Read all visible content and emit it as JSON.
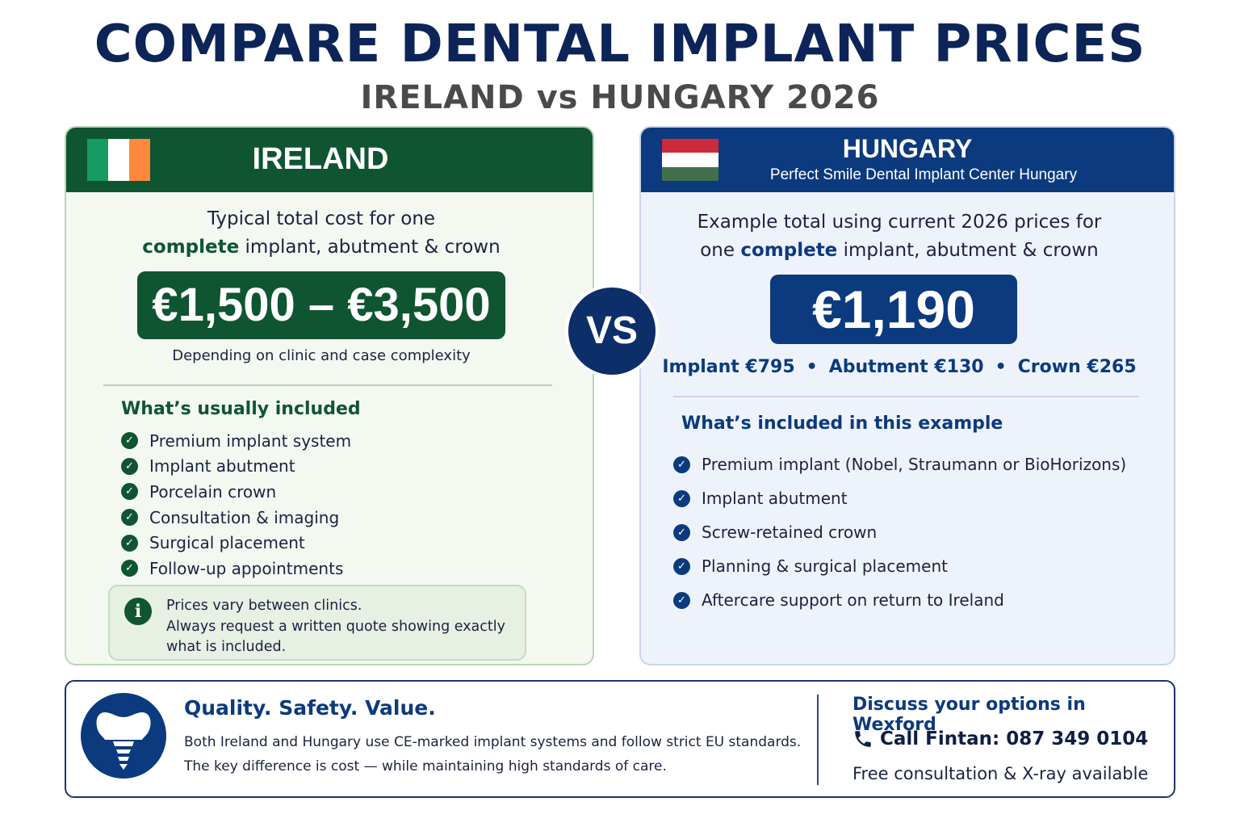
{
  "title": "COMPARE DENTAL IMPLANT PRICES",
  "subtitle": "IRELAND vs HUNGARY 2026",
  "colors": {
    "ireland_green": "#0f5532",
    "hungary_blue": "#0c3a7e",
    "ie_flag": [
      "#169b62",
      "#ffffff",
      "#ff883e"
    ],
    "hu_flag": [
      "#cd2a3e",
      "#ffffff",
      "#436f4d"
    ]
  },
  "ireland": {
    "heading": "IRELAND",
    "intro_line1": "Typical total cost for one",
    "intro_strong": "complete",
    "intro_line2_rest": " implant, abutment & crown",
    "price": "€1,500 – €3,500",
    "price_note": "Depending on clinic and case complexity",
    "included_title": "What’s usually included",
    "included": [
      "Premium implant system",
      "Implant abutment",
      "Porcelain crown",
      "Consultation & imaging",
      "Surgical placement",
      "Follow-up appointments"
    ],
    "info_icon": "info-icon",
    "info_lines": [
      "Prices vary between clinics.",
      "Always request a written quote showing exactly",
      "what is included."
    ]
  },
  "vs_label": "VS",
  "hungary": {
    "heading": "HUNGARY",
    "clinic": "Perfect Smile Dental Implant Center Hungary",
    "intro_line1": "Example total using current 2026 prices for",
    "intro_line2_pre": "one ",
    "intro_strong": "complete",
    "intro_line2_rest": " implant, abutment & crown",
    "price": "€1,190",
    "breakdown": [
      "Implant €795",
      "Abutment €130",
      "Crown €265"
    ],
    "breakdown_sep": "•",
    "included_title": "What’s included in this example",
    "included": [
      "Premium implant (Nobel, Straumann or BioHorizons)",
      "Implant abutment",
      "Screw-retained crown",
      "Planning & surgical placement",
      "Aftercare support on return to Ireland"
    ]
  },
  "footer": {
    "icon": "tooth-implant-icon",
    "quality_title": "Quality. Safety. Value.",
    "quality_lines": [
      "Both Ireland and Hungary use CE-marked implant systems and follow strict EU standards.",
      "The key difference is cost — while maintaining high standards of care."
    ],
    "discuss_title": "Discuss your options in Wexford",
    "call_icon": "phone-icon",
    "call": "Call Fintan: 087 349 0104",
    "free": "Free consultation & X-ray available"
  }
}
